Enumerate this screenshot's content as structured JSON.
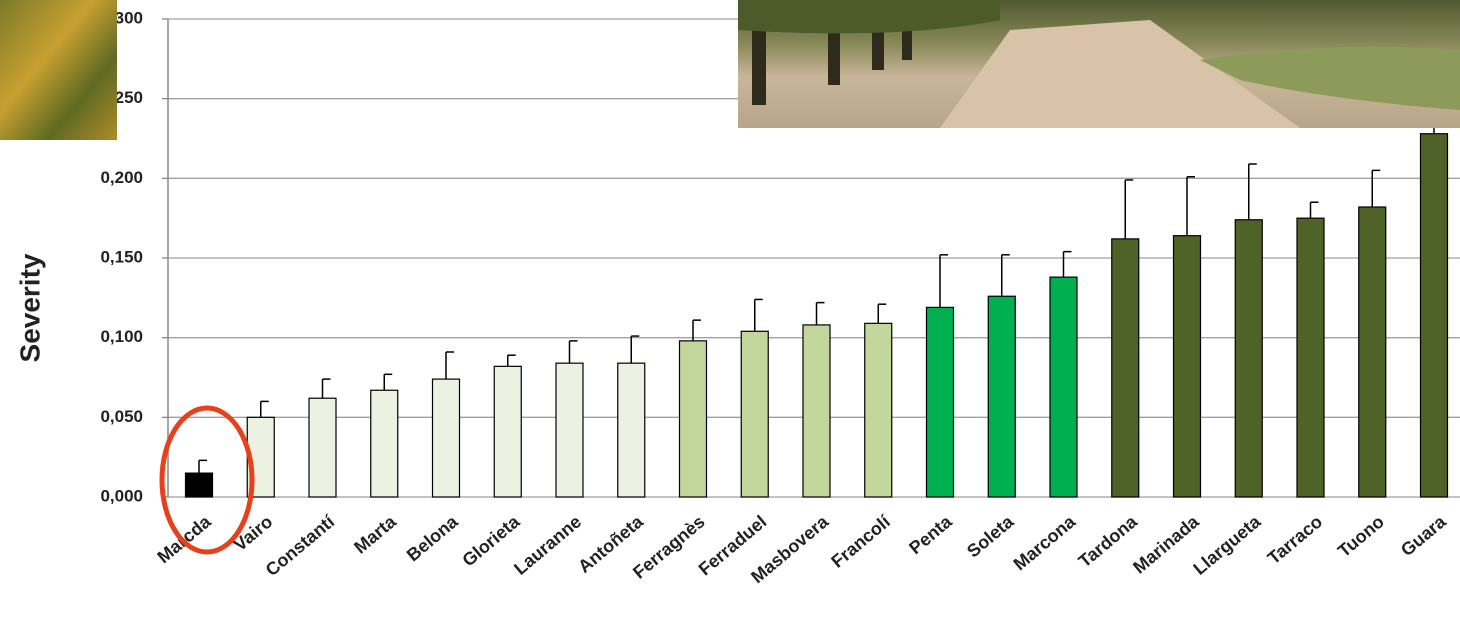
{
  "chart_data": {
    "type": "bar",
    "y_label": "Severity",
    "categories": [
      "Marcda",
      "Vairo",
      "Constantí",
      "Marta",
      "Belona",
      "Glorieta",
      "Lauranne",
      "Antoñeta",
      "Ferragnès",
      "Ferraduel",
      "Masbovera",
      "Francolí",
      "Penta",
      "Soleta",
      "Marcona",
      "Tardona",
      "Marinada",
      "Llargueta",
      "Tarraco",
      "Tuono",
      "Guara"
    ],
    "values": [
      0.015,
      0.05,
      0.062,
      0.067,
      0.074,
      0.082,
      0.084,
      0.084,
      0.098,
      0.104,
      0.108,
      0.109,
      0.119,
      0.126,
      0.138,
      0.162,
      0.164,
      0.174,
      0.175,
      0.182,
      0.228
    ],
    "errors": [
      0.008,
      0.01,
      0.012,
      0.01,
      0.017,
      0.007,
      0.014,
      0.017,
      0.013,
      0.02,
      0.014,
      0.012,
      0.033,
      0.026,
      0.016,
      0.037,
      0.037,
      0.035,
      0.01,
      0.023,
      0.005
    ],
    "colors": [
      "#000000",
      "#edf1e1",
      "#edf1e1",
      "#edf1e1",
      "#edf1e1",
      "#edf1e1",
      "#edf1e1",
      "#edf1e1",
      "#c3d69b",
      "#c3d69b",
      "#c3d69b",
      "#c3d69b",
      "#00b050",
      "#00b050",
      "#00b050",
      "#4f6228",
      "#4f6228",
      "#4f6228",
      "#4f6228",
      "#4f6228",
      "#4f6228"
    ],
    "ylim": [
      0,
      0.3
    ],
    "yticks": [
      {
        "value": 0,
        "label": "0,000"
      },
      {
        "value": 0.05,
        "label": "0,050"
      },
      {
        "value": 0.1,
        "label": "0,100"
      },
      {
        "value": 0.15,
        "label": "0,150"
      },
      {
        "value": 0.2,
        "label": "0,200"
      },
      {
        "value": 0.25,
        "label": "0,250"
      },
      {
        "value": 0.3,
        "label": "0,300"
      }
    ],
    "grid": true
  }
}
